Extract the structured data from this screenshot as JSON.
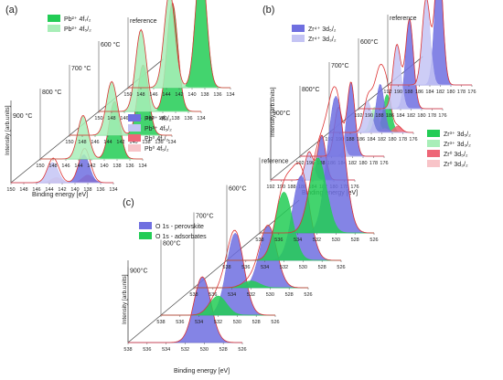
{
  "chart_data": [
    {
      "type": "area",
      "panel_label": "(a)",
      "xlabel": "Binding energy [eV]",
      "ylabel": "Intensity [arb.units]",
      "xlim": [
        150,
        134
      ],
      "x_ticks": [
        150,
        148,
        146,
        144,
        142,
        140,
        138,
        136,
        134
      ],
      "traces": [
        {
          "label": "900 °C",
          "peaks": [
            {
              "series": "Pb0 4f7/2",
              "center": 138.0,
              "height": 0.06
            },
            {
              "series": "Pb0 4f5/2",
              "center": 142.9,
              "height": 0.04
            },
            {
              "series": "Pb3+ 4f7/2",
              "center": 138.6,
              "height": 0.22
            },
            {
              "series": "Pb3+ 4f5/2",
              "center": 143.5,
              "height": 0.16
            }
          ]
        },
        {
          "label": "800 °C",
          "peaks": [
            {
              "series": "Pb2+ 4f7/2",
              "center": 138.4,
              "height": 0.45
            },
            {
              "series": "Pb2+ 4f5/2",
              "center": 143.3,
              "height": 0.34
            }
          ]
        },
        {
          "label": "700 °C",
          "peaks": [
            {
              "series": "Pb2+ 4f7/2",
              "center": 138.5,
              "height": 0.55
            },
            {
              "series": "Pb2+ 4f5/2",
              "center": 143.4,
              "height": 0.42
            }
          ]
        },
        {
          "label": "600 °C",
          "peaks": [
            {
              "series": "Pb2+ 4f7/2",
              "center": 138.5,
              "height": 0.85
            },
            {
              "series": "Pb2+ 4f5/2",
              "center": 143.4,
              "height": 0.64
            }
          ]
        },
        {
          "label": "reference",
          "peaks": [
            {
              "series": "Pb2+ 4f7/2",
              "center": 138.6,
              "height": 1.0
            },
            {
              "series": "Pb2+ 4f5/2",
              "center": 143.5,
              "height": 0.75
            }
          ]
        }
      ],
      "legend_top": [
        {
          "label": "Pb²⁺ 4f₇/₂",
          "color": "#22cc55"
        },
        {
          "label": "Pb²⁺ 4f₅/₂",
          "color": "#a8eeb8"
        }
      ],
      "legend_bottom": [
        {
          "label": "Pb³⁺ 4f₇/₂",
          "color": "#6f6fe0"
        },
        {
          "label": "Pb³⁺ 4f₅/₂",
          "color": "#c4c4f4"
        },
        {
          "label": "Pb⁰ 4f₇/₂",
          "color": "#ee6677"
        },
        {
          "label": "Pb⁰ 4f₅/₂",
          "color": "#f8c4c8"
        }
      ]
    },
    {
      "type": "area",
      "panel_label": "(b)",
      "xlabel": "Binding energy [eV]",
      "ylabel": "Intensity [arb.units]",
      "xlim": [
        192,
        176
      ],
      "x_ticks": [
        192,
        190,
        188,
        186,
        184,
        182,
        180,
        178,
        176
      ],
      "traces": [
        {
          "label": "900°C",
          "peaks": [
            {
              "series": "Zr4+ 3d5/2",
              "center": 182.3,
              "height": 0.35
            },
            {
              "series": "Zr4+ 3d3/2",
              "center": 184.7,
              "height": 0.22
            }
          ]
        },
        {
          "label": "800°C",
          "peaks": [
            {
              "series": "Zr4+ 3d5/2",
              "center": 182.3,
              "height": 0.58
            },
            {
              "series": "Zr4+ 3d3/2",
              "center": 184.7,
              "height": 0.38
            }
          ]
        },
        {
          "label": "700°C",
          "peaks": [
            {
              "series": "Zr3+ 3d5/2",
              "center": 181.0,
              "height": 0.3
            },
            {
              "series": "Zr3+ 3d3/2",
              "center": 183.4,
              "height": 0.2
            },
            {
              "series": "Zr0 3d5/2",
              "center": 179.0,
              "height": 0.05
            },
            {
              "series": "Zr0 3d3/2",
              "center": 181.4,
              "height": 0.03
            },
            {
              "series": "Zr4+ 3d5/2",
              "center": 182.3,
              "height": 0.38
            },
            {
              "series": "Zr4+ 3d3/2",
              "center": 184.7,
              "height": 0.25
            }
          ]
        },
        {
          "label": "600°C",
          "peaks": [
            {
              "series": "Zr4+ 3d5/2",
              "center": 182.3,
              "height": 0.7
            },
            {
              "series": "Zr4+ 3d3/2",
              "center": 184.7,
              "height": 0.5
            }
          ]
        },
        {
          "label": "reference",
          "peaks": [
            {
              "series": "Zr4+ 3d5/2",
              "center": 182.3,
              "height": 1.0
            },
            {
              "series": "Zr4+ 3d3/2",
              "center": 184.7,
              "height": 0.68
            }
          ]
        }
      ],
      "legend_top": [
        {
          "label": "Zr⁴⁺ 3d₅/₂",
          "color": "#6f6fe0"
        },
        {
          "label": "Zr⁴⁺ 3d₃/₂",
          "color": "#c4c4f4"
        }
      ],
      "legend_bottom": [
        {
          "label": "Zr³⁺ 3d₅/₂",
          "color": "#22cc55"
        },
        {
          "label": "Zr³⁺ 3d₃/₂",
          "color": "#a8eeb8"
        },
        {
          "label": "Zr⁰ 3d₅/₂",
          "color": "#ee6677"
        },
        {
          "label": "Zr⁰ 3d₃/₂",
          "color": "#f8c4c8"
        }
      ]
    },
    {
      "type": "area",
      "panel_label": "(c)",
      "xlabel": "Binding energy [eV]",
      "ylabel": "Intensity [arb.units]",
      "xlim": [
        538,
        526
      ],
      "x_ticks": [
        538,
        536,
        534,
        532,
        530,
        528,
        526
      ],
      "traces": [
        {
          "label": "900°C",
          "peaks": [
            {
              "series": "O 1s - perovskite",
              "center": 530.2,
              "height": 0.48
            }
          ]
        },
        {
          "label": "800°C",
          "peaks": [
            {
              "series": "O 1s - perovskite",
              "center": 530.2,
              "height": 0.6
            },
            {
              "series": "O 1s - adsorbates",
              "center": 532.0,
              "height": 0.14
            }
          ]
        },
        {
          "label": "700°C",
          "peaks": [
            {
              "series": "O 1s - perovskite",
              "center": 530.2,
              "height": 0.45
            },
            {
              "series": "O 1s - adsorbates",
              "center": 532.0,
              "height": 0.05
            }
          ]
        },
        {
          "label": "600°C",
          "peaks": [
            {
              "series": "O 1s - perovskite",
              "center": 530.2,
              "height": 0.62
            },
            {
              "series": "O 1s - adsorbates",
              "center": 532.0,
              "height": 0.5
            }
          ]
        },
        {
          "label": "reference",
          "peaks": [
            {
              "series": "O 1s - perovskite",
              "center": 530.0,
              "height": 1.0
            },
            {
              "series": "O 1s - adsorbates",
              "center": 531.9,
              "height": 0.55
            }
          ]
        }
      ],
      "legend_top": [
        {
          "label": "O 1s - perovskite",
          "color": "#6f6fe0"
        },
        {
          "label": "O 1s - adsorbates",
          "color": "#22cc55"
        }
      ],
      "legend_bottom": []
    }
  ]
}
